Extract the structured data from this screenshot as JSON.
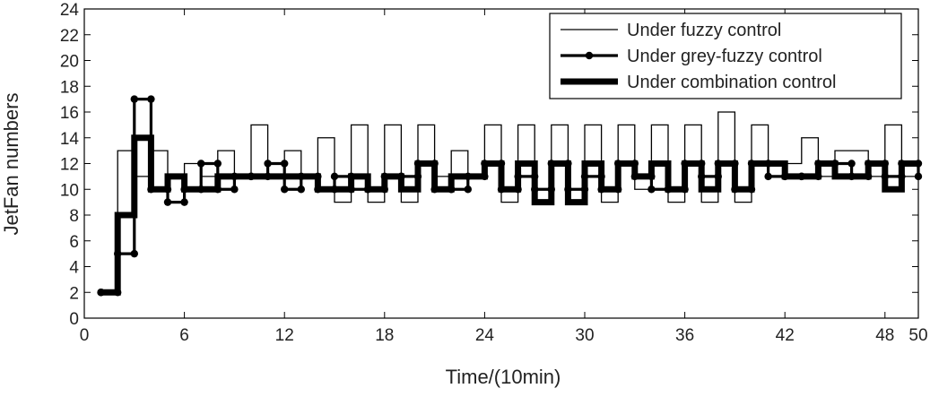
{
  "chart_data": {
    "type": "line",
    "title": "",
    "xlabel": "Time/(10min)",
    "ylabel": "JetFan numbers",
    "xlim": [
      0,
      50
    ],
    "ylim": [
      0,
      24
    ],
    "xticks": [
      0,
      6,
      12,
      18,
      24,
      30,
      36,
      42,
      48,
      50
    ],
    "yticks": [
      0,
      2,
      4,
      6,
      8,
      10,
      12,
      14,
      16,
      18,
      20,
      22,
      24
    ],
    "grid": false,
    "legend_position": "top-right",
    "step": true,
    "series": [
      {
        "name": "Under fuzzy control",
        "style": "thin",
        "color": "#000000",
        "x": [
          1,
          2,
          3,
          4,
          5,
          6,
          7,
          8,
          9,
          10,
          11,
          12,
          13,
          14,
          15,
          16,
          17,
          18,
          19,
          20,
          21,
          22,
          23,
          24,
          25,
          26,
          27,
          28,
          29,
          30,
          31,
          32,
          33,
          34,
          35,
          36,
          37,
          38,
          39,
          40,
          41,
          42,
          43,
          44,
          45,
          46,
          47,
          48,
          49,
          50
        ],
        "y": [
          2,
          13,
          11,
          13,
          11,
          12,
          11,
          13,
          11,
          15,
          11,
          13,
          11,
          14,
          9,
          15,
          9,
          15,
          9,
          15,
          11,
          13,
          11,
          15,
          9,
          15,
          9,
          15,
          9,
          15,
          9,
          15,
          10,
          15,
          9,
          15,
          9,
          16,
          9,
          15,
          11,
          12,
          14,
          11,
          13,
          13,
          11,
          15,
          11,
          11
        ]
      },
      {
        "name": "Under grey-fuzzy control",
        "style": "marker",
        "color": "#000000",
        "x": [
          1,
          2,
          3,
          4,
          5,
          6,
          7,
          8,
          9,
          10,
          11,
          12,
          13,
          14,
          15,
          16,
          17,
          18,
          19,
          20,
          21,
          22,
          23,
          24,
          25,
          26,
          27,
          28,
          29,
          30,
          31,
          32,
          33,
          34,
          35,
          36,
          37,
          38,
          39,
          40,
          41,
          42,
          43,
          44,
          45,
          46,
          47,
          48,
          49,
          50
        ],
        "y": [
          2,
          5,
          17,
          10,
          9,
          10,
          12,
          10,
          11,
          11,
          12,
          10,
          11,
          10,
          11,
          10,
          10,
          11,
          11,
          12,
          10,
          10,
          11,
          12,
          10,
          11,
          10,
          12,
          10,
          11,
          10,
          12,
          11,
          10,
          10,
          12,
          11,
          12,
          10,
          12,
          11,
          11,
          11,
          12,
          12,
          11,
          12,
          11,
          12,
          11
        ]
      },
      {
        "name": "Under combination control",
        "style": "thick",
        "color": "#000000",
        "x": [
          1,
          2,
          3,
          4,
          5,
          6,
          7,
          8,
          9,
          10,
          11,
          12,
          13,
          14,
          15,
          16,
          17,
          18,
          19,
          20,
          21,
          22,
          23,
          24,
          25,
          26,
          27,
          28,
          29,
          30,
          31,
          32,
          33,
          34,
          35,
          36,
          37,
          38,
          39,
          40,
          41,
          42,
          43,
          44,
          45,
          46,
          47,
          48,
          49,
          50
        ],
        "y": [
          2,
          8,
          14,
          10,
          11,
          10,
          10,
          11,
          11,
          11,
          11,
          11,
          11,
          10,
          10,
          11,
          10,
          11,
          10,
          12,
          10,
          11,
          11,
          12,
          10,
          12,
          9,
          12,
          9,
          12,
          10,
          12,
          11,
          12,
          10,
          12,
          10,
          12,
          10,
          12,
          12,
          11,
          11,
          12,
          11,
          11,
          12,
          10,
          12,
          12
        ]
      }
    ]
  }
}
